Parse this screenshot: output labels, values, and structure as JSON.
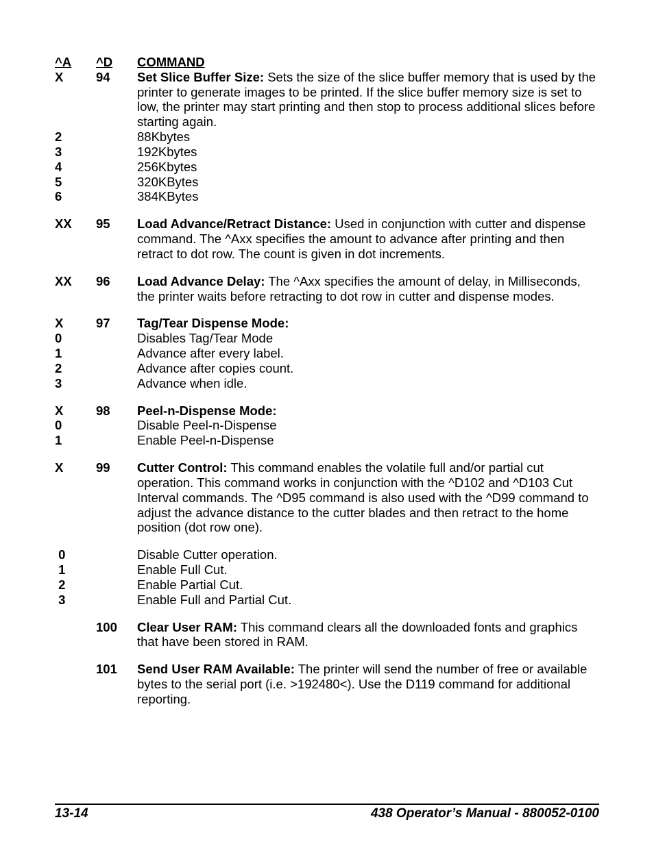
{
  "headers": {
    "a": "^A",
    "d": "^D",
    "cmd": "COMMAND"
  },
  "rows": [
    {
      "a": "X",
      "d": "94",
      "title": "Set Slice Buffer Size:",
      "text": "  Sets the size of the slice buffer memory that is used by the printer to generate images to be printed.  If the slice buffer memory size is set to low, the printer may start printing and then stop to process additional slices before starting again."
    },
    {
      "a": "2",
      "d": "",
      "title": "",
      "text": " 88Kbytes"
    },
    {
      "a": "3",
      "d": "",
      "title": "",
      "text": "192Kbytes"
    },
    {
      "a": "4",
      "d": "",
      "title": "",
      "text": "256Kbytes"
    },
    {
      "a": "5",
      "d": "",
      "title": "",
      "text": "320KBytes"
    },
    {
      "a": "6",
      "d": "",
      "title": "",
      "text": "384KBytes"
    },
    {
      "spacer": true
    },
    {
      "a": "XX",
      "d": "95",
      "title": "Load Advance/Retract Distance:",
      "text": " Used in conjunction with cutter and dispense command.  The ^Axx specifies the amount to advance after printing and then retract to dot row.  The count is given in dot increments."
    },
    {
      "spacer": true
    },
    {
      "a": "XX",
      "d": "96",
      "title": "Load Advance Delay:",
      "text": " The ^Axx specifies the amount of delay, in Milliseconds, the printer waits before retracting to dot row in cutter and dispense modes."
    },
    {
      "spacer": true
    },
    {
      "a": "X",
      "d": "97",
      "title": "Tag/Tear Dispense Mode:",
      "text": ""
    },
    {
      "a": "0",
      "d": "",
      "title": "",
      "text": "Disables Tag/Tear Mode"
    },
    {
      "a": "1",
      "d": "",
      "title": "",
      "text": "Advance after every label."
    },
    {
      "a": "2",
      "d": "",
      "title": "",
      "text": "Advance after copies count."
    },
    {
      "a": "3",
      "d": "",
      "title": "",
      "text": "Advance when idle."
    },
    {
      "spacer": true
    },
    {
      "a": "X",
      "d": "98",
      "title": "Peel-n-Dispense Mode:",
      "text": ""
    },
    {
      "a": "0",
      "d": "",
      "title": "",
      "text": "Disable Peel-n-Dispense"
    },
    {
      "a": "1",
      "d": "",
      "title": "",
      "text": "Enable Peel-n-Dispense"
    },
    {
      "spacer": true
    },
    {
      "a": "X",
      "d": "99",
      "title": "Cutter Control:",
      "text": "  This command enables the volatile full and/or partial cut operation.  This command works in conjunction with the ^D102 and ^D103 Cut Interval commands.  The ^D95 command is also used with the ^D99 command to adjust the advance distance to the cutter blades and then retract to the home position (dot row one)."
    },
    {
      "spacer": true
    },
    {
      "a": " 0",
      "d": "",
      "title": "",
      "text": "Disable Cutter operation."
    },
    {
      "a": " 1",
      "d": "",
      "title": "",
      "text": "Enable Full Cut."
    },
    {
      "a": " 2",
      "d": "",
      "title": "",
      "text": "Enable Partial Cut."
    },
    {
      "a": " 3",
      "d": "",
      "title": "",
      "text": "Enable Full and Partial Cut."
    },
    {
      "spacer": true
    },
    {
      "a": "",
      "d": "100",
      "title": "Clear User RAM:",
      "text": " This command clears all the downloaded fonts and graphics that have been stored in RAM."
    },
    {
      "spacer": true
    },
    {
      "a": "",
      "d": "101",
      "title": "Send User RAM Available:",
      "text": " The printer will send the number of free or available bytes to the serial port (i.e. >192480<).  Use the D119 command for additional reporting."
    }
  ],
  "footer": {
    "left": "13-14",
    "right": "438 Operator’s Manual - 880052-0100"
  }
}
